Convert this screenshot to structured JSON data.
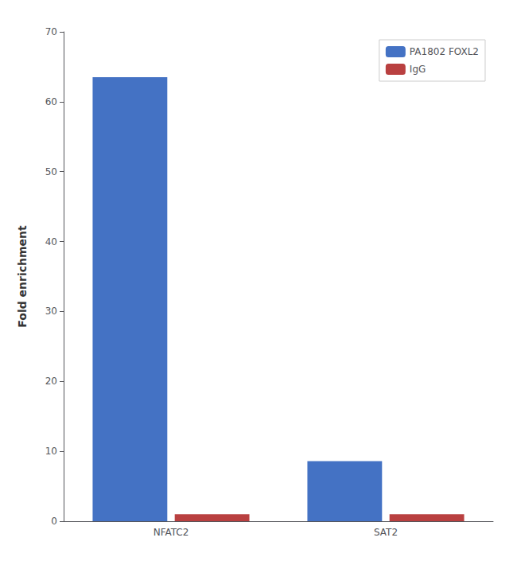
{
  "chart_data": {
    "type": "bar",
    "categories": [
      "NFATC2",
      "SAT2"
    ],
    "series": [
      {
        "name": "PA1802 FOXL2",
        "color": "#4472C4",
        "values": [
          63.5,
          8.6
        ]
      },
      {
        "name": "IgG",
        "color": "#B94040",
        "values": [
          1.0,
          1.0
        ]
      }
    ],
    "ylabel": "Fold enrichment",
    "ylim": [
      0,
      70
    ],
    "yticks": [
      0,
      10,
      20,
      30,
      40,
      50,
      60,
      70
    ],
    "grid": false,
    "legend": "upper right"
  }
}
